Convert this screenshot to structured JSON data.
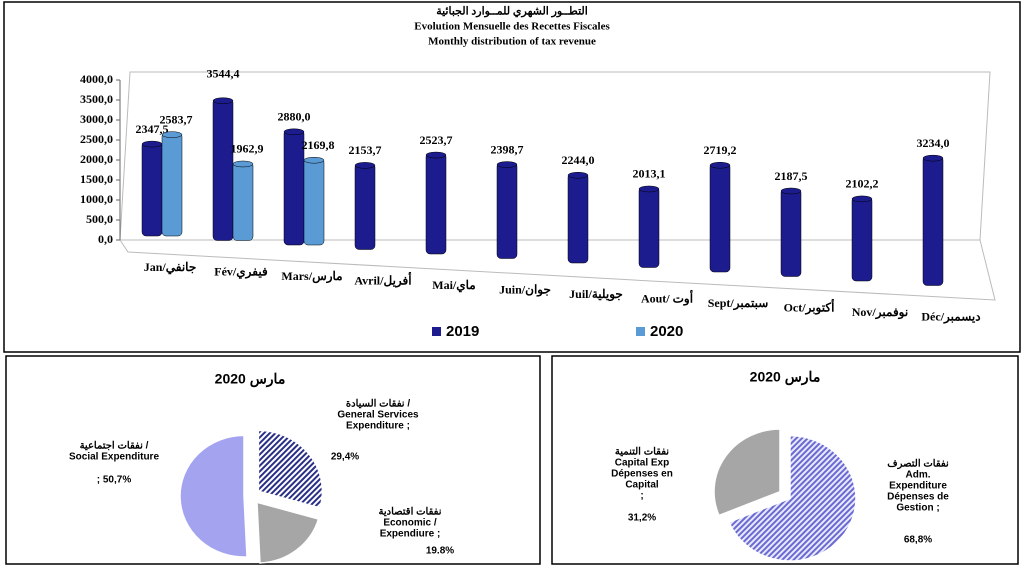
{
  "chart_data": [
    {
      "type": "bar",
      "title": [
        "التطــور الشهري للمــوارد الجبائية",
        "Evolution Mensuelle des Recettes Fiscales",
        "Monthly distribution of tax revenue"
      ],
      "categories": [
        "Jan/جانفي",
        "Fév/فيفري",
        "Mars/مارس",
        "Avril/أفريل",
        "Mai/ماي",
        "Juin/جوان",
        "Juil/جويلية",
        "Aout/ أوت",
        "Sept/سبتمبر",
        "Oct/أكتوبر",
        "Nov/نوفمبر",
        "Déc/ديسمبر"
      ],
      "series": [
        {
          "name": "2019",
          "color": "#1c1c8e",
          "values": [
            2347.5,
            3544.4,
            2880.0,
            2153.7,
            2523.7,
            2398.7,
            2244.0,
            2013.1,
            2719.2,
            2187.5,
            2102.2,
            3234.0
          ],
          "value_labels": [
            "2347,5",
            "3544,4",
            "2880,0",
            "2153,7",
            "2523,7",
            "2398,7",
            "2244,0",
            "2013,1",
            "2719,2",
            "2187,5",
            "2102,2",
            "3234,0"
          ]
        },
        {
          "name": "2020",
          "color": "#5b9bd5",
          "values": [
            2583.7,
            1962.9,
            2169.8,
            null,
            null,
            null,
            null,
            null,
            null,
            null,
            null,
            null
          ],
          "value_labels": [
            "2583,7",
            "1962,9",
            "2169,8",
            null,
            null,
            null,
            null,
            null,
            null,
            null,
            null,
            null
          ]
        }
      ],
      "ylim": [
        0,
        4000
      ],
      "yticks": [
        {
          "value": 0,
          "label": "0,0"
        },
        {
          "value": 500,
          "label": "500,0"
        },
        {
          "value": 1000,
          "label": "1000,0"
        },
        {
          "value": 1500,
          "label": "1500,0"
        },
        {
          "value": 2000,
          "label": "2000,0"
        },
        {
          "value": 2500,
          "label": "2500,0"
        },
        {
          "value": 3000,
          "label": "3000,0"
        },
        {
          "value": 3500,
          "label": "3500,0"
        },
        {
          "value": 4000,
          "label": "4000,0"
        }
      ],
      "legend": "bottom"
    },
    {
      "type": "pie",
      "title": "مارس 2020",
      "categories": [
        [
          "نفقات السيادة /",
          "General  Services",
          "Expenditure        ;"
        ],
        [
          "نفقات  اقتصادية",
          "Economic /",
          "Expendiure        ;"
        ],
        [
          "نفقات اجتماعية    /",
          "Social Expenditure"
        ]
      ],
      "values": [
        29.4,
        19.8,
        50.7
      ],
      "value_labels": [
        "29,4%",
        "19.8%",
        "; 50,7%"
      ],
      "colors": [
        "#2a2f86",
        "#a6a6a6",
        "#a3a3f0"
      ]
    },
    {
      "type": "pie",
      "title": "مارس 2020",
      "categories": [
        [
          "نفقات التصرف",
          "Adm.",
          "Expenditure",
          "Dépenses de",
          "Gestion        ;"
        ],
        [
          "نفقات التنمية",
          "Capital Exp",
          "Dépenses en",
          "Capital",
          ";"
        ]
      ],
      "values": [
        68.8,
        31.2
      ],
      "value_labels": [
        "68,8%",
        "31,2%"
      ],
      "colors": [
        "#6a6ad0",
        "#a6a6a6"
      ]
    }
  ]
}
